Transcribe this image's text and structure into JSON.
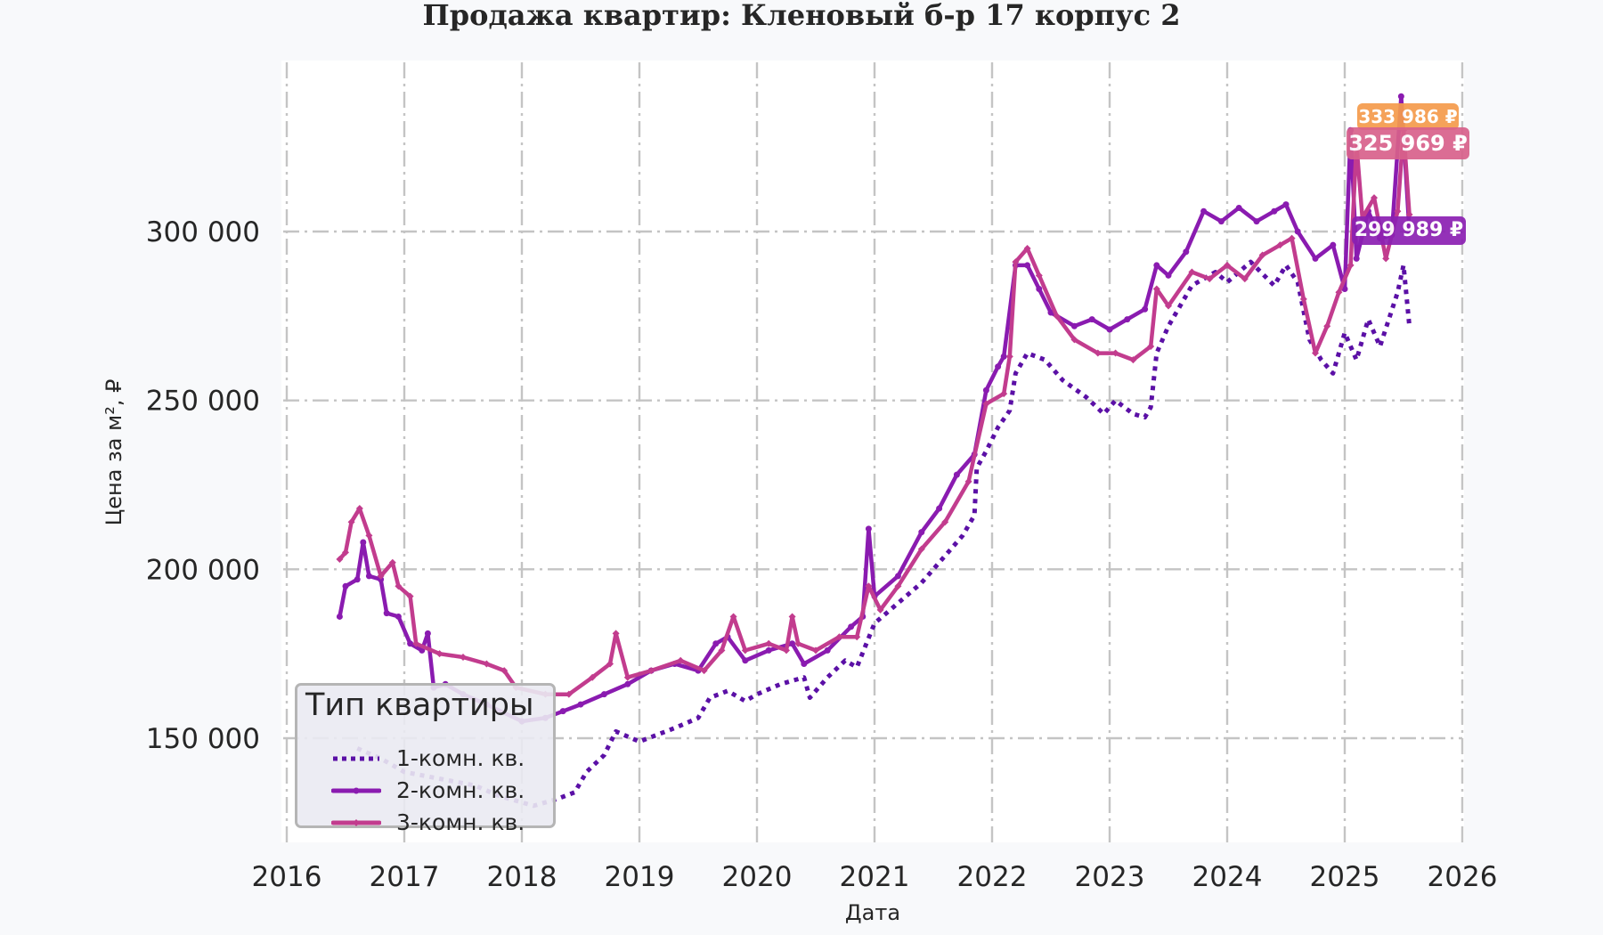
{
  "title": "Продажа квартир: Кленовый б-р 17 корпус 2",
  "colors": {
    "background": "#f8f9fb",
    "plot_background": "#ffffff",
    "grid": "#c4c4c4"
  },
  "chart_data": {
    "type": "line",
    "title": "Продажа квартир: Кленовый б-р 17 корпус 2",
    "xlabel": "Дата",
    "ylabel": "Цена за м², ₽",
    "xlim": [
      2016,
      2026
    ],
    "ylim": [
      120000,
      345000
    ],
    "x_ticks": [
      "2016",
      "2017",
      "2018",
      "2019",
      "2020",
      "2021",
      "2022",
      "2023",
      "2024",
      "2025",
      "2026"
    ],
    "y_ticks": [
      {
        "value": 150000,
        "label": "150 000"
      },
      {
        "value": 200000,
        "label": "200 000"
      },
      {
        "value": 250000,
        "label": "250 000"
      },
      {
        "value": 300000,
        "label": "300 000"
      }
    ],
    "grid": true,
    "legend_position": "lower left",
    "legend_title": "Тип квартиры",
    "series": [
      {
        "name": "1-комн. кв.",
        "color": "#5b10a6",
        "style": "dotted",
        "marker": "square",
        "points": [
          [
            2016.6,
            147000
          ],
          [
            2016.8,
            144000
          ],
          [
            2017.0,
            140000
          ],
          [
            2017.3,
            138000
          ],
          [
            2017.6,
            136000
          ],
          [
            2017.8,
            133000
          ],
          [
            2018.1,
            130000
          ],
          [
            2018.3,
            132000
          ],
          [
            2018.45,
            134000
          ],
          [
            2018.55,
            140000
          ],
          [
            2018.7,
            145000
          ],
          [
            2018.8,
            152000
          ],
          [
            2019.0,
            149000
          ],
          [
            2019.3,
            153000
          ],
          [
            2019.5,
            156000
          ],
          [
            2019.6,
            162000
          ],
          [
            2019.75,
            164000
          ],
          [
            2019.9,
            161000
          ],
          [
            2020.0,
            163000
          ],
          [
            2020.2,
            166000
          ],
          [
            2020.4,
            168000
          ],
          [
            2020.45,
            162000
          ],
          [
            2020.6,
            168000
          ],
          [
            2020.75,
            173000
          ],
          [
            2020.85,
            171000
          ],
          [
            2021.0,
            184000
          ],
          [
            2021.2,
            190000
          ],
          [
            2021.4,
            196000
          ],
          [
            2021.6,
            204000
          ],
          [
            2021.75,
            210000
          ],
          [
            2021.85,
            216000
          ],
          [
            2021.87,
            230000
          ],
          [
            2021.95,
            235000
          ],
          [
            2022.05,
            242000
          ],
          [
            2022.15,
            247000
          ],
          [
            2022.2,
            258000
          ],
          [
            2022.3,
            264000
          ],
          [
            2022.45,
            262000
          ],
          [
            2022.6,
            256000
          ],
          [
            2022.8,
            251000
          ],
          [
            2022.95,
            246000
          ],
          [
            2023.05,
            250000
          ],
          [
            2023.2,
            246000
          ],
          [
            2023.3,
            245000
          ],
          [
            2023.35,
            248000
          ],
          [
            2023.4,
            264000
          ],
          [
            2023.5,
            272000
          ],
          [
            2023.7,
            284000
          ],
          [
            2023.9,
            288000
          ],
          [
            2024.0,
            285000
          ],
          [
            2024.2,
            291000
          ],
          [
            2024.4,
            284000
          ],
          [
            2024.5,
            290000
          ],
          [
            2024.6,
            285000
          ],
          [
            2024.7,
            268000
          ],
          [
            2024.8,
            262000
          ],
          [
            2024.9,
            258000
          ],
          [
            2025.0,
            270000
          ],
          [
            2025.1,
            262000
          ],
          [
            2025.2,
            274000
          ],
          [
            2025.3,
            266000
          ],
          [
            2025.45,
            282000
          ],
          [
            2025.5,
            290000
          ],
          [
            2025.55,
            272000
          ]
        ]
      },
      {
        "name": "2-комн. кв.",
        "color": "#8a1bb0",
        "style": "solid",
        "marker": "circle",
        "points": [
          [
            2016.45,
            186000
          ],
          [
            2016.5,
            195000
          ],
          [
            2016.6,
            197000
          ],
          [
            2016.65,
            208000
          ],
          [
            2016.7,
            198000
          ],
          [
            2016.8,
            197000
          ],
          [
            2016.85,
            187000
          ],
          [
            2016.95,
            186000
          ],
          [
            2017.05,
            178000
          ],
          [
            2017.15,
            176000
          ],
          [
            2017.2,
            181000
          ],
          [
            2017.25,
            165000
          ],
          [
            2017.35,
            166000
          ],
          [
            2017.5,
            163000
          ],
          [
            2017.7,
            160000
          ],
          [
            2018.0,
            155000
          ],
          [
            2018.2,
            156000
          ],
          [
            2018.35,
            158000
          ],
          [
            2018.5,
            160000
          ],
          [
            2018.7,
            163000
          ],
          [
            2018.9,
            166000
          ],
          [
            2019.1,
            170000
          ],
          [
            2019.3,
            172000
          ],
          [
            2019.5,
            170000
          ],
          [
            2019.65,
            178000
          ],
          [
            2019.75,
            180000
          ],
          [
            2019.9,
            173000
          ],
          [
            2020.1,
            176000
          ],
          [
            2020.3,
            178000
          ],
          [
            2020.4,
            172000
          ],
          [
            2020.6,
            176000
          ],
          [
            2020.8,
            183000
          ],
          [
            2020.9,
            186000
          ],
          [
            2020.95,
            212000
          ],
          [
            2021.0,
            192000
          ],
          [
            2021.2,
            198000
          ],
          [
            2021.4,
            211000
          ],
          [
            2021.55,
            218000
          ],
          [
            2021.7,
            228000
          ],
          [
            2021.85,
            234000
          ],
          [
            2021.95,
            253000
          ],
          [
            2022.05,
            260000
          ],
          [
            2022.1,
            263000
          ],
          [
            2022.2,
            290000
          ],
          [
            2022.3,
            290000
          ],
          [
            2022.4,
            283000
          ],
          [
            2022.5,
            276000
          ],
          [
            2022.7,
            272000
          ],
          [
            2022.85,
            274000
          ],
          [
            2023.0,
            271000
          ],
          [
            2023.15,
            274000
          ],
          [
            2023.3,
            277000
          ],
          [
            2023.4,
            290000
          ],
          [
            2023.5,
            287000
          ],
          [
            2023.65,
            294000
          ],
          [
            2023.8,
            306000
          ],
          [
            2023.95,
            303000
          ],
          [
            2024.1,
            307000
          ],
          [
            2024.25,
            303000
          ],
          [
            2024.4,
            306000
          ],
          [
            2024.5,
            308000
          ],
          [
            2024.6,
            300000
          ],
          [
            2024.75,
            292000
          ],
          [
            2024.9,
            296000
          ],
          [
            2025.0,
            283000
          ],
          [
            2025.05,
            330000
          ],
          [
            2025.1,
            292000
          ],
          [
            2025.2,
            306000
          ],
          [
            2025.3,
            298000
          ],
          [
            2025.4,
            299000
          ],
          [
            2025.48,
            340000
          ],
          [
            2025.55,
            300000
          ]
        ]
      },
      {
        "name": "3-комн. кв.",
        "color": "#c23c8e",
        "style": "solid",
        "marker": "diamond",
        "points": [
          [
            2016.45,
            203000
          ],
          [
            2016.5,
            205000
          ],
          [
            2016.55,
            214000
          ],
          [
            2016.62,
            218000
          ],
          [
            2016.7,
            210000
          ],
          [
            2016.8,
            198000
          ],
          [
            2016.9,
            202000
          ],
          [
            2016.95,
            195000
          ],
          [
            2017.05,
            192000
          ],
          [
            2017.1,
            178000
          ],
          [
            2017.3,
            175000
          ],
          [
            2017.5,
            174000
          ],
          [
            2017.7,
            172000
          ],
          [
            2017.85,
            170000
          ],
          [
            2017.95,
            165000
          ],
          [
            2018.2,
            163000
          ],
          [
            2018.4,
            163000
          ],
          [
            2018.6,
            168000
          ],
          [
            2018.75,
            172000
          ],
          [
            2018.8,
            181000
          ],
          [
            2018.9,
            168000
          ],
          [
            2019.1,
            170000
          ],
          [
            2019.35,
            173000
          ],
          [
            2019.55,
            170000
          ],
          [
            2019.7,
            176000
          ],
          [
            2019.8,
            186000
          ],
          [
            2019.9,
            176000
          ],
          [
            2020.1,
            178000
          ],
          [
            2020.25,
            176000
          ],
          [
            2020.3,
            186000
          ],
          [
            2020.35,
            178000
          ],
          [
            2020.5,
            176000
          ],
          [
            2020.7,
            180000
          ],
          [
            2020.85,
            180000
          ],
          [
            2020.95,
            195000
          ],
          [
            2021.05,
            188000
          ],
          [
            2021.2,
            195000
          ],
          [
            2021.4,
            206000
          ],
          [
            2021.6,
            214000
          ],
          [
            2021.8,
            226000
          ],
          [
            2021.95,
            249000
          ],
          [
            2022.1,
            252000
          ],
          [
            2022.15,
            263000
          ],
          [
            2022.2,
            291000
          ],
          [
            2022.3,
            295000
          ],
          [
            2022.4,
            287000
          ],
          [
            2022.55,
            275000
          ],
          [
            2022.7,
            268000
          ],
          [
            2022.9,
            264000
          ],
          [
            2023.05,
            264000
          ],
          [
            2023.2,
            262000
          ],
          [
            2023.35,
            266000
          ],
          [
            2023.4,
            283000
          ],
          [
            2023.5,
            278000
          ],
          [
            2023.7,
            288000
          ],
          [
            2023.85,
            286000
          ],
          [
            2024.0,
            290000
          ],
          [
            2024.15,
            286000
          ],
          [
            2024.3,
            293000
          ],
          [
            2024.45,
            296000
          ],
          [
            2024.55,
            298000
          ],
          [
            2024.65,
            280000
          ],
          [
            2024.75,
            264000
          ],
          [
            2024.85,
            272000
          ],
          [
            2024.95,
            282000
          ],
          [
            2025.05,
            290000
          ],
          [
            2025.1,
            326000
          ],
          [
            2025.15,
            304000
          ],
          [
            2025.25,
            310000
          ],
          [
            2025.35,
            292000
          ],
          [
            2025.45,
            306000
          ],
          [
            2025.5,
            330000
          ],
          [
            2025.55,
            305000
          ]
        ]
      }
    ],
    "annotations": [
      {
        "text": "333 986 ₽",
        "value": 333986,
        "color": "#f59b4c",
        "series": "max"
      },
      {
        "text": "325 969 ₽",
        "value": 325969,
        "color": "#d8618b",
        "series": "3-комн. кв."
      },
      {
        "text": "299 989 ₽",
        "value": 299989,
        "color": "#8b20b2",
        "series": "2-комн. кв."
      }
    ]
  },
  "legend": {
    "title": "Тип квартиры",
    "items": [
      {
        "label": "1-комн. кв.",
        "color": "#5b10a6",
        "style": "dotted"
      },
      {
        "label": "2-комн. кв.",
        "color": "#8a1bb0",
        "style": "solid"
      },
      {
        "label": "3-комн. кв.",
        "color": "#c23c8e",
        "style": "solid"
      }
    ]
  },
  "price_labels": [
    {
      "text": "333 986 ₽",
      "color": "#f59b4c"
    },
    {
      "text": "325 969 ₽",
      "color": "#d8618b"
    },
    {
      "text": "299 989 ₽",
      "color": "#8b20b2"
    }
  ]
}
